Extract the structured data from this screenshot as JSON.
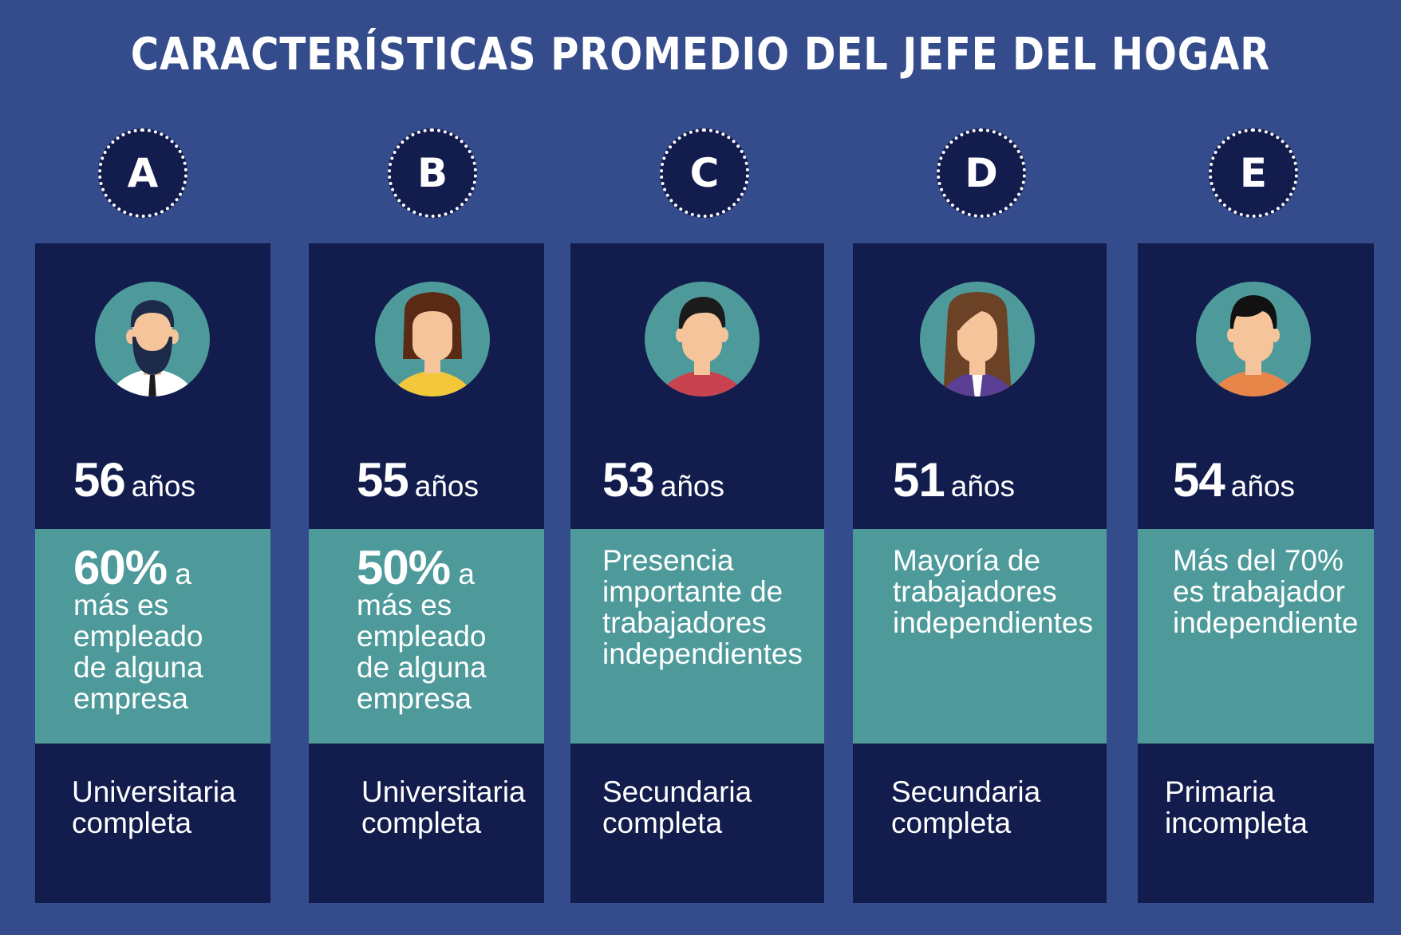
{
  "title": "CARACTERÍSTICAS PROMEDIO DEL JEFE DEL HOGAR",
  "colors": {
    "background": "#354c8c",
    "panel": "#121c4d",
    "teal": "#4e9a9b",
    "avatar_circle": "#4e9a9b",
    "skin": "#f5c49a"
  },
  "columns": [
    {
      "letter": "A",
      "age_number": "56",
      "age_unit": "años",
      "pct": "60%",
      "pct_suffix": "a",
      "occupation_lines": [
        "más es",
        "empleado",
        "de alguna",
        "empresa"
      ],
      "education_lines": [
        "Universitaria",
        "completa"
      ],
      "avatar": "bearded-man-avatar-icon"
    },
    {
      "letter": "B",
      "age_number": "55",
      "age_unit": "años",
      "pct": "50%",
      "pct_suffix": "a",
      "occupation_lines": [
        "más es",
        "empleado",
        "de alguna",
        "empresa"
      ],
      "education_lines": [
        "Universitaria",
        "completa"
      ],
      "avatar": "short-hair-woman-avatar-icon"
    },
    {
      "letter": "C",
      "age_number": "53",
      "age_unit": "años",
      "occupation_lines": [
        "Presencia",
        "importante de",
        "trabajadores",
        "independientes"
      ],
      "education_lines": [
        "Secundaria",
        "completa"
      ],
      "avatar": "young-man-avatar-icon"
    },
    {
      "letter": "D",
      "age_number": "51",
      "age_unit": "años",
      "occupation_lines": [
        "Mayoría de",
        "trabajadores",
        "independientes"
      ],
      "education_lines": [
        "Secundaria",
        "completa"
      ],
      "avatar": "long-hair-woman-avatar-icon"
    },
    {
      "letter": "E",
      "age_number": "54",
      "age_unit": "años",
      "occupation_lines": [
        "Más del 70%",
        "es trabajador",
        "independiente"
      ],
      "education_lines": [
        "Primaria",
        "incompleta"
      ],
      "avatar": "man-orange-shirt-avatar-icon"
    }
  ]
}
